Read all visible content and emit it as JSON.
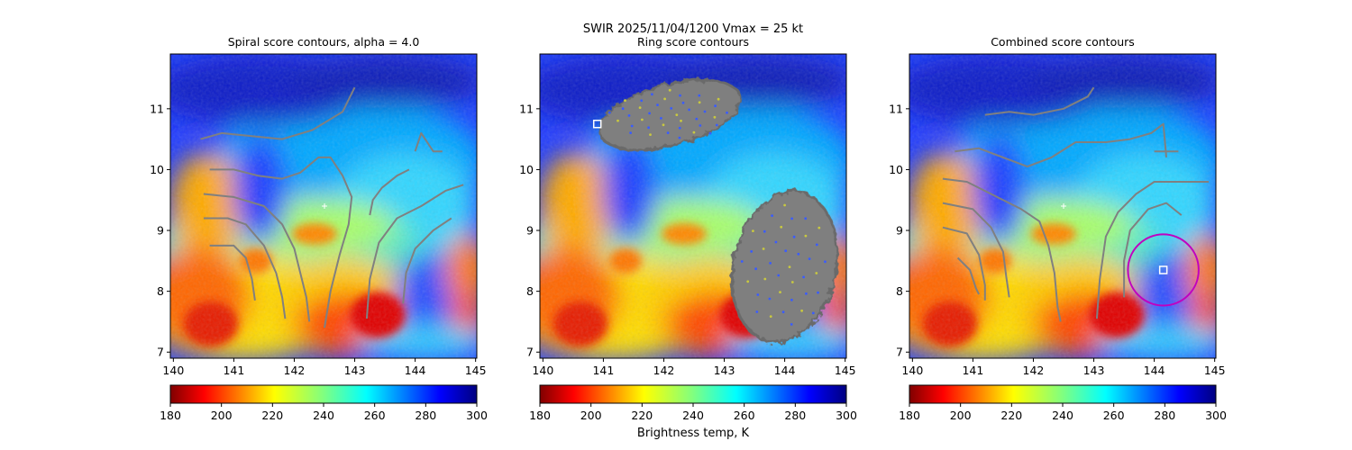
{
  "figure": {
    "suptitle_line1": "SWIR  2025/11/04/1200    Vmax = 25 kt",
    "colorbar_label": "Brightness temp, K"
  },
  "chart_data": [
    {
      "type": "heatmap",
      "title": "Spiral score contours, alpha =  4.0",
      "xlim": [
        139.95,
        145.02
      ],
      "ylim": [
        6.9,
        11.9
      ],
      "x_ticks": [
        140,
        141,
        142,
        143,
        144,
        145
      ],
      "y_ticks": [
        7,
        8,
        9,
        10,
        11
      ],
      "colorbar_ticks": [
        180,
        200,
        220,
        240,
        260,
        280,
        300
      ],
      "colorbar_range": [
        180,
        300
      ],
      "colormap": "jet_r",
      "overlay": "gray spiral contour lines",
      "markers": [
        {
          "kind": "plus",
          "x": 142.5,
          "y": 9.4,
          "color": "#ffffff"
        }
      ],
      "contours": [
        [
          [
            140.45,
            10.5
          ],
          [
            140.8,
            10.6
          ],
          [
            141.3,
            10.55
          ],
          [
            141.8,
            10.5
          ],
          [
            142.3,
            10.65
          ],
          [
            142.8,
            10.95
          ],
          [
            143.0,
            11.35
          ]
        ],
        [
          [
            140.6,
            10.0
          ],
          [
            141.0,
            10.0
          ],
          [
            141.4,
            9.9
          ],
          [
            141.8,
            9.85
          ],
          [
            142.1,
            9.95
          ],
          [
            142.4,
            10.2
          ],
          [
            142.6,
            10.2
          ],
          [
            142.8,
            9.9
          ],
          [
            142.95,
            9.55
          ],
          [
            142.9,
            9.1
          ],
          [
            142.75,
            8.6
          ],
          [
            142.6,
            8.0
          ],
          [
            142.5,
            7.4
          ]
        ],
        [
          [
            140.5,
            9.6
          ],
          [
            141.0,
            9.55
          ],
          [
            141.5,
            9.4
          ],
          [
            141.8,
            9.1
          ],
          [
            142.0,
            8.7
          ],
          [
            142.1,
            8.3
          ],
          [
            142.2,
            7.9
          ],
          [
            142.25,
            7.5
          ]
        ],
        [
          [
            140.5,
            9.2
          ],
          [
            140.9,
            9.2
          ],
          [
            141.2,
            9.1
          ],
          [
            141.5,
            8.75
          ],
          [
            141.7,
            8.3
          ],
          [
            141.8,
            7.9
          ],
          [
            141.85,
            7.55
          ]
        ],
        [
          [
            140.6,
            8.75
          ],
          [
            141.0,
            8.75
          ],
          [
            141.2,
            8.55
          ],
          [
            141.3,
            8.2
          ],
          [
            141.35,
            7.85
          ]
        ],
        [
          [
            143.25,
            9.25
          ],
          [
            143.3,
            9.5
          ],
          [
            143.45,
            9.7
          ],
          [
            143.7,
            9.9
          ],
          [
            143.9,
            10.0
          ]
        ],
        [
          [
            143.2,
            7.55
          ],
          [
            143.25,
            8.2
          ],
          [
            143.4,
            8.8
          ],
          [
            143.7,
            9.2
          ],
          [
            144.1,
            9.4
          ],
          [
            144.5,
            9.65
          ],
          [
            144.8,
            9.75
          ]
        ],
        [
          [
            143.8,
            7.8
          ],
          [
            143.85,
            8.3
          ],
          [
            144.0,
            8.7
          ],
          [
            144.3,
            9.0
          ],
          [
            144.6,
            9.2
          ]
        ],
        [
          [
            144.0,
            10.3
          ],
          [
            144.1,
            10.6
          ],
          [
            144.3,
            10.3
          ],
          [
            144.45,
            10.3
          ]
        ]
      ]
    },
    {
      "type": "heatmap",
      "title": "Ring score contours",
      "xlim": [
        139.95,
        145.02
      ],
      "ylim": [
        6.9,
        11.9
      ],
      "x_ticks": [
        140,
        141,
        142,
        143,
        144,
        145
      ],
      "y_ticks": [
        7,
        8,
        9,
        10,
        11
      ],
      "colorbar_ticks": [
        180,
        200,
        220,
        240,
        260,
        280,
        300
      ],
      "colorbar_range": [
        180,
        300
      ],
      "colormap": "jet_r",
      "overlay": "gray ring score contour regions",
      "markers": [
        {
          "kind": "square",
          "x": 140.9,
          "y": 10.75,
          "color": "#ffffff"
        }
      ],
      "regions": [
        {
          "center": [
            142.1,
            10.9
          ],
          "rx_deg": 1.2,
          "ry_deg": 0.5,
          "rotation_deg": -15
        },
        {
          "center": [
            144.0,
            8.4
          ],
          "rx_deg": 0.85,
          "ry_deg": 1.25,
          "rotation_deg": 12
        }
      ]
    },
    {
      "type": "heatmap",
      "title": "Combined score contours",
      "xlim": [
        139.95,
        145.02
      ],
      "ylim": [
        6.9,
        11.9
      ],
      "x_ticks": [
        140,
        141,
        142,
        143,
        144,
        145
      ],
      "y_ticks": [
        7,
        8,
        9,
        10,
        11
      ],
      "colorbar_ticks": [
        180,
        200,
        220,
        240,
        260,
        280,
        300
      ],
      "colorbar_range": [
        180,
        300
      ],
      "colormap": "jet_r",
      "overlay": "gray combined contours with magenta circle at best center",
      "markers": [
        {
          "kind": "plus",
          "x": 142.5,
          "y": 9.4,
          "color": "#ffffff"
        },
        {
          "kind": "square",
          "x": 144.15,
          "y": 8.35,
          "color": "#ffffff"
        },
        {
          "kind": "circle",
          "x": 144.15,
          "y": 8.35,
          "radius_deg": 0.45,
          "color": "#c000c0"
        }
      ],
      "contours": [
        [
          [
            141.2,
            10.9
          ],
          [
            141.6,
            10.95
          ],
          [
            142.0,
            10.9
          ],
          [
            142.5,
            11.0
          ],
          [
            142.9,
            11.2
          ],
          [
            143.0,
            11.35
          ]
        ],
        [
          [
            140.7,
            10.3
          ],
          [
            141.1,
            10.35
          ],
          [
            141.5,
            10.2
          ],
          [
            141.9,
            10.05
          ],
          [
            142.3,
            10.2
          ],
          [
            142.7,
            10.45
          ],
          [
            143.2,
            10.45
          ],
          [
            143.6,
            10.5
          ],
          [
            143.95,
            10.6
          ],
          [
            144.15,
            10.75
          ],
          [
            144.2,
            10.2
          ]
        ],
        [
          [
            140.5,
            9.85
          ],
          [
            140.9,
            9.8
          ],
          [
            141.4,
            9.55
          ],
          [
            141.8,
            9.35
          ],
          [
            142.1,
            9.15
          ],
          [
            142.25,
            8.75
          ],
          [
            142.35,
            8.3
          ],
          [
            142.4,
            7.75
          ],
          [
            142.45,
            7.5
          ]
        ],
        [
          [
            140.5,
            9.45
          ],
          [
            141.0,
            9.35
          ],
          [
            141.3,
            9.05
          ],
          [
            141.5,
            8.65
          ],
          [
            141.55,
            8.25
          ],
          [
            141.6,
            7.9
          ]
        ],
        [
          [
            140.5,
            9.05
          ],
          [
            140.9,
            8.95
          ],
          [
            141.1,
            8.6
          ],
          [
            141.2,
            8.1
          ],
          [
            141.2,
            7.85
          ]
        ],
        [
          [
            140.75,
            8.55
          ],
          [
            140.95,
            8.35
          ],
          [
            141.05,
            8.05
          ],
          [
            141.1,
            7.95
          ]
        ],
        [
          [
            143.05,
            7.55
          ],
          [
            143.1,
            8.2
          ],
          [
            143.2,
            8.9
          ],
          [
            143.4,
            9.3
          ],
          [
            143.7,
            9.6
          ],
          [
            144.0,
            9.8
          ],
          [
            144.3,
            9.8
          ],
          [
            144.6,
            9.8
          ],
          [
            144.9,
            9.8
          ]
        ],
        [
          [
            143.5,
            7.9
          ],
          [
            143.5,
            8.5
          ],
          [
            143.6,
            9.0
          ],
          [
            143.9,
            9.35
          ],
          [
            144.2,
            9.45
          ],
          [
            144.45,
            9.25
          ]
        ],
        [
          [
            144.0,
            10.3
          ],
          [
            144.4,
            10.3
          ]
        ]
      ]
    }
  ]
}
